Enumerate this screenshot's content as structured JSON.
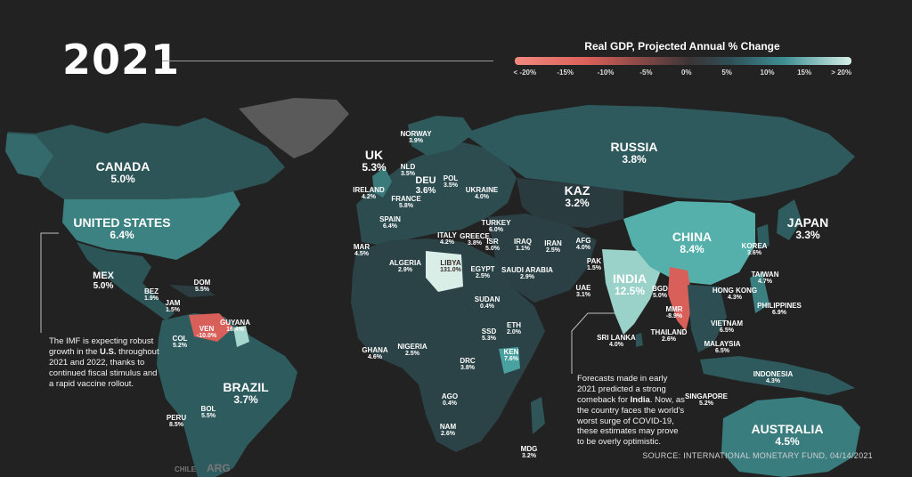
{
  "header": {
    "year": "2021",
    "legend_title": "Real GDP, Projected Annual % Change",
    "legend_ticks": [
      "< -20%",
      "-15%",
      "-10%",
      "-5%",
      "0%",
      "5%",
      "10%",
      "15%",
      "> 20%"
    ],
    "legend_colors": [
      "#f28a7f",
      "#d95f58",
      "#3b3436",
      "#2e4f56",
      "#3e8f93",
      "#d7efe9"
    ]
  },
  "countries": {
    "canada": {
      "name": "CANADA",
      "value": "5.0%"
    },
    "united_states": {
      "name": "UNITED STATES",
      "value": "6.4%"
    },
    "mex": {
      "name": "MEX",
      "value": "5.0%"
    },
    "bez": {
      "name": "BEZ",
      "value": "1.9%"
    },
    "jam": {
      "name": "JAM",
      "value": "1.5%"
    },
    "dom": {
      "name": "DOM",
      "value": "5.5%"
    },
    "ven": {
      "name": "VEN",
      "value": "-10.0%"
    },
    "guyana": {
      "name": "GUYANA",
      "value": "16.4%"
    },
    "col": {
      "name": "COL",
      "value": "5.2%"
    },
    "brazil": {
      "name": "BRAZIL",
      "value": "3.7%"
    },
    "bol": {
      "name": "BOL",
      "value": "5.5%"
    },
    "peru": {
      "name": "PERU",
      "value": "8.5%"
    },
    "chile": {
      "name": "CHILE",
      "value": ""
    },
    "arg": {
      "name": "ARG",
      "value": ""
    },
    "uk": {
      "name": "UK",
      "value": "5.3%"
    },
    "norway": {
      "name": "NORWAY",
      "value": "3.9%"
    },
    "ireland": {
      "name": "IRELAND",
      "value": "4.2%"
    },
    "nld": {
      "name": "NLD",
      "value": "3.5%"
    },
    "deu": {
      "name": "DEU",
      "value": "3.6%"
    },
    "pol": {
      "name": "POL",
      "value": "3.5%"
    },
    "france": {
      "name": "FRANCE",
      "value": "5.8%"
    },
    "ukraine": {
      "name": "UKRAINE",
      "value": "4.0%"
    },
    "spain": {
      "name": "SPAIN",
      "value": "6.4%"
    },
    "italy": {
      "name": "ITALY",
      "value": "4.2%"
    },
    "greece": {
      "name": "GREECE",
      "value": "3.8%"
    },
    "turkey": {
      "name": "TURKEY",
      "value": "6.0%"
    },
    "isr": {
      "name": "ISR",
      "value": "5.0%"
    },
    "mar": {
      "name": "MAR",
      "value": "4.5%"
    },
    "algeria": {
      "name": "ALGERIA",
      "value": "2.9%"
    },
    "libya": {
      "name": "LIBYA",
      "value": "131.0%"
    },
    "egypt": {
      "name": "EGYPT",
      "value": "2.5%"
    },
    "iraq": {
      "name": "IRAQ",
      "value": "1.1%"
    },
    "iran": {
      "name": "IRAN",
      "value": "2.5%"
    },
    "saudi_arabia": {
      "name": "SAUDI ARABIA",
      "value": "2.9%"
    },
    "uae": {
      "name": "UAE",
      "value": "3.1%"
    },
    "sudan": {
      "name": "SUDAN",
      "value": "0.4%"
    },
    "eth": {
      "name": "ETH",
      "value": "2.0%"
    },
    "ssd": {
      "name": "SSD",
      "value": "5.3%"
    },
    "ken": {
      "name": "KEN",
      "value": "7.6%"
    },
    "drc": {
      "name": "DRC",
      "value": "3.8%"
    },
    "ghana": {
      "name": "GHANA",
      "value": "4.6%"
    },
    "nigeria": {
      "name": "NIGERIA",
      "value": "2.5%"
    },
    "ago": {
      "name": "AGO",
      "value": "0.4%"
    },
    "nam": {
      "name": "NAM",
      "value": "2.6%"
    },
    "mdg": {
      "name": "MDG",
      "value": "3.2%"
    },
    "russia": {
      "name": "RUSSIA",
      "value": "3.8%"
    },
    "kaz": {
      "name": "KAZ",
      "value": "3.2%"
    },
    "afg": {
      "name": "AFG",
      "value": "4.0%"
    },
    "pak": {
      "name": "PAK",
      "value": "1.5%"
    },
    "india": {
      "name": "INDIA",
      "value": "12.5%"
    },
    "sri_lanka": {
      "name": "SRI LANKA",
      "value": "4.0%"
    },
    "bgd": {
      "name": "BGD",
      "value": "5.0%"
    },
    "mmr": {
      "name": "MMR",
      "value": "-8.9%"
    },
    "thailand": {
      "name": "THAILAND",
      "value": "2.6%"
    },
    "china": {
      "name": "CHINA",
      "value": "8.4%"
    },
    "korea": {
      "name": "KOREA",
      "value": "3.6%"
    },
    "japan": {
      "name": "JAPAN",
      "value": "3.3%"
    },
    "taiwan": {
      "name": "TAIWAN",
      "value": "4.7%"
    },
    "hong_kong": {
      "name": "HONG KONG",
      "value": "4.3%"
    },
    "philippines": {
      "name": "PHILIPPINES",
      "value": "6.9%"
    },
    "vietnam": {
      "name": "VIETNAM",
      "value": "6.5%"
    },
    "malaysia": {
      "name": "MALAYSIA",
      "value": "6.5%"
    },
    "singapore": {
      "name": "SINGAPORE",
      "value": "5.2%"
    },
    "indonesia": {
      "name": "INDONESIA",
      "value": "4.3%"
    },
    "australia": {
      "name": "AUSTRALIA",
      "value": "4.5%"
    }
  },
  "annotations": {
    "us_note": {
      "before": "The IMF is expecting robust growth in the ",
      "bold": "U.S.",
      "after": " throughout 2021 and 2022, thanks to continued fiscal stimulus and a rapid vaccine rollout."
    },
    "india_note": {
      "before": "Forecasts made in early 2021 predicted a strong comeback for ",
      "bold": "India",
      "after": ". Now, as the country faces the world's worst surge of COVID-19, these estimates may prove to be overly optimistic."
    }
  },
  "source": "SOURCE: INTERNATIONAL MONETARY FUND, 04/14/2021"
}
